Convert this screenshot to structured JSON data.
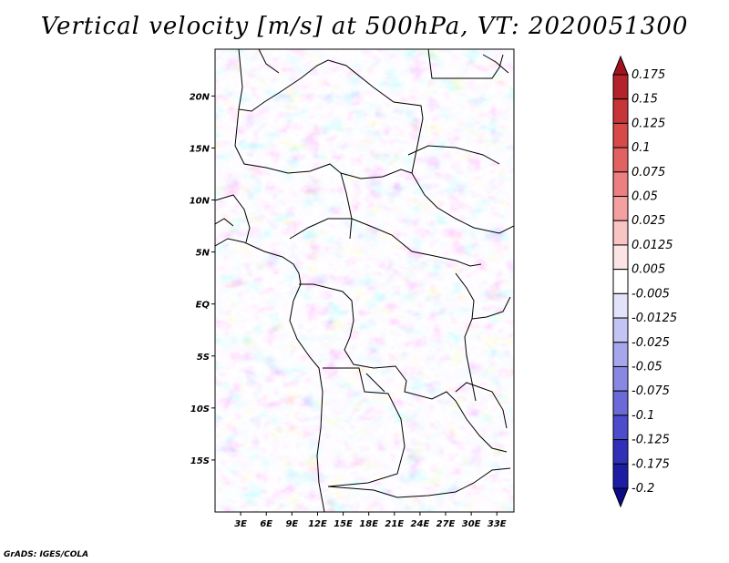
{
  "title": "Vertical velocity [m/s] at 500hPa, VT: 2020051300",
  "footer": "GrADS: IGES/COLA",
  "map": {
    "lon_range": [
      0,
      35
    ],
    "lat_range": [
      -20,
      24.5
    ],
    "lat_ticks": [
      "20N",
      "15N",
      "10N",
      "5N",
      "EQ",
      "5S",
      "10S",
      "15S"
    ],
    "lat_tick_values": [
      20,
      15,
      10,
      5,
      0,
      -5,
      -10,
      -15
    ],
    "lon_ticks": [
      "3E",
      "6E",
      "9E",
      "12E",
      "15E",
      "18E",
      "21E",
      "24E",
      "27E",
      "30E",
      "33E"
    ],
    "lon_tick_values": [
      3,
      6,
      9,
      12,
      15,
      18,
      21,
      24,
      27,
      30,
      33
    ]
  },
  "colorbar": {
    "labels": [
      "0.175",
      "0.15",
      "0.125",
      "0.1",
      "0.075",
      "0.05",
      "0.025",
      "0.0125",
      "0.005",
      "-0.005",
      "-0.0125",
      "-0.025",
      "-0.05",
      "-0.075",
      "-0.1",
      "-0.125",
      "-0.175",
      "-0.2"
    ],
    "colors": [
      "#a0141e",
      "#b4232a",
      "#c83538",
      "#d84a4a",
      "#e26262",
      "#ec8080",
      "#f4a0a0",
      "#f9c4c4",
      "#fce4e4",
      "#ffffff",
      "#e2e2fa",
      "#c4c4f4",
      "#a6a6ec",
      "#8888e2",
      "#6a6ad8",
      "#4c4ccc",
      "#3030b8",
      "#1c1ca4",
      "#0c0c86"
    ]
  }
}
